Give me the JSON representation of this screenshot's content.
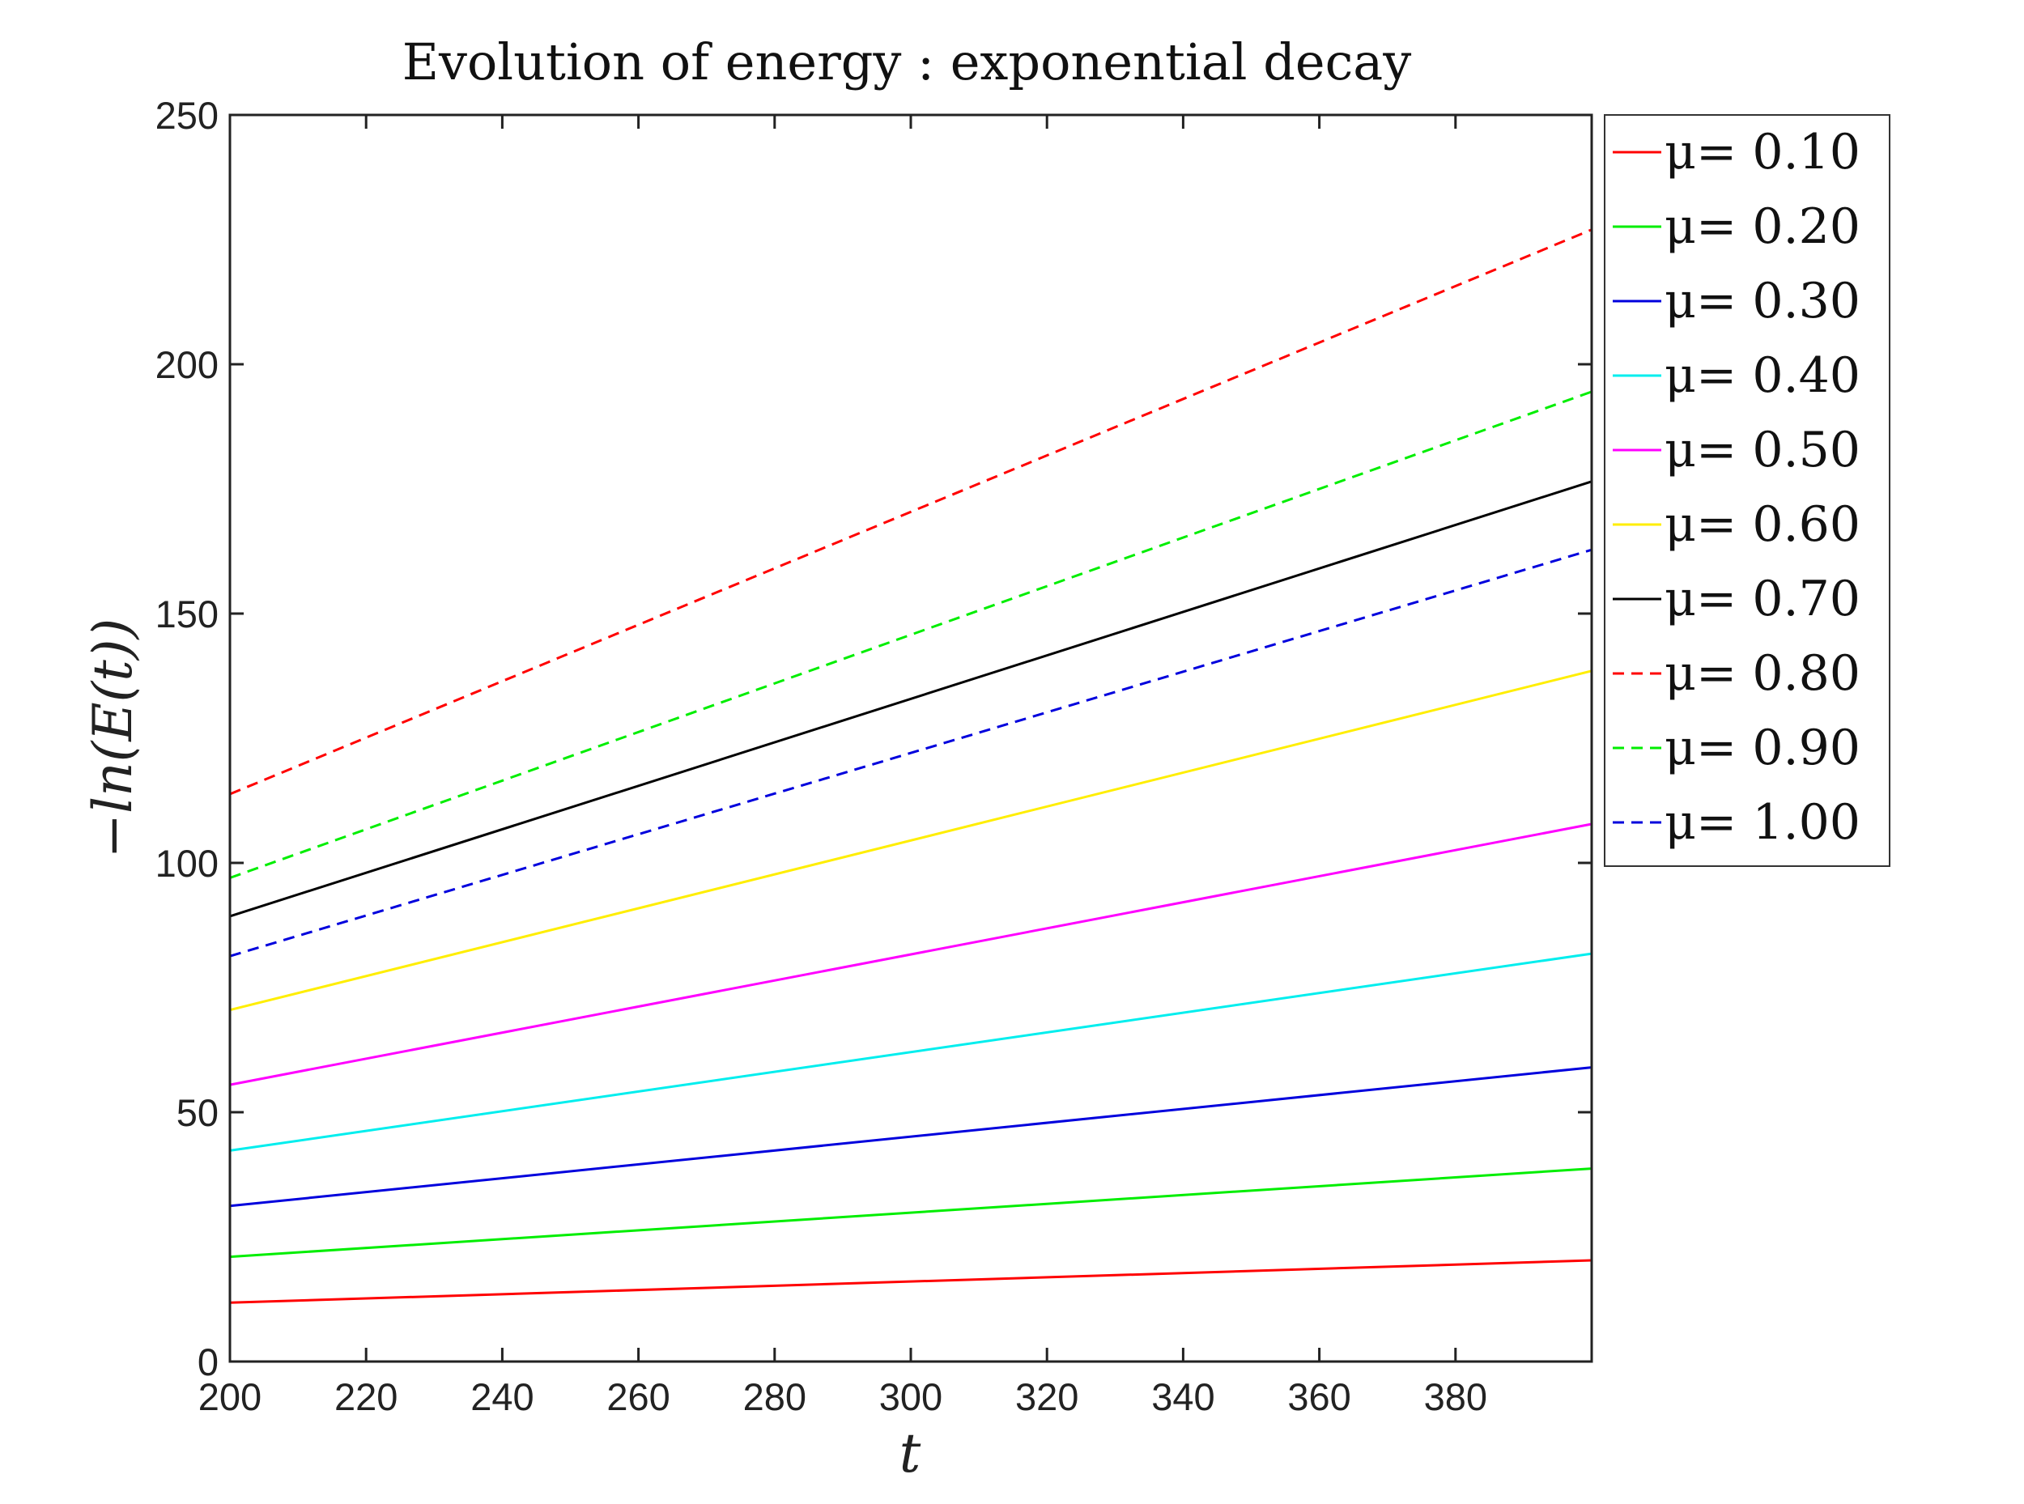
{
  "chart_data": {
    "type": "line",
    "title": "Evolution of energy : exponential decay",
    "xlabel": "t",
    "ylabel": "−ln(E(t))",
    "xlim": [
      200,
      400
    ],
    "ylim": [
      0,
      250
    ],
    "xticks": [
      200,
      220,
      240,
      260,
      280,
      300,
      320,
      340,
      360,
      380
    ],
    "yticks": [
      0,
      50,
      100,
      150,
      200,
      250
    ],
    "grid": false,
    "legend_position": "outside-right",
    "legend_prefix": "μ= ",
    "x": [
      200,
      400
    ],
    "series": [
      {
        "name": "0.10",
        "label": "μ= 0.10",
        "color": "#ff0000",
        "dash": "solid",
        "values": [
          11.8,
          20.3
        ]
      },
      {
        "name": "0.20",
        "label": "μ= 0.20",
        "color": "#00ee00",
        "dash": "solid",
        "values": [
          21.0,
          38.7
        ]
      },
      {
        "name": "0.30",
        "label": "μ= 0.30",
        "color": "#0000dd",
        "dash": "solid",
        "values": [
          31.2,
          59.0
        ]
      },
      {
        "name": "0.40",
        "label": "μ= 0.40",
        "color": "#00eeee",
        "dash": "solid",
        "values": [
          42.3,
          81.8
        ]
      },
      {
        "name": "0.50",
        "label": "μ= 0.50",
        "color": "#ff00ff",
        "dash": "solid",
        "values": [
          55.5,
          107.8
        ]
      },
      {
        "name": "0.60",
        "label": "μ= 0.60",
        "color": "#ffee00",
        "dash": "solid",
        "values": [
          70.5,
          138.5
        ]
      },
      {
        "name": "0.70",
        "label": "μ= 0.70",
        "color": "#000000",
        "dash": "solid",
        "values": [
          89.3,
          176.5
        ]
      },
      {
        "name": "0.80",
        "label": "μ= 0.80",
        "color": "#ff0000",
        "dash": "dashed",
        "values": [
          113.8,
          227.0
        ]
      },
      {
        "name": "0.90",
        "label": "μ= 0.90",
        "color": "#00ee00",
        "dash": "dashed",
        "values": [
          97.0,
          194.5
        ]
      },
      {
        "name": "1.00",
        "label": "μ= 1.00",
        "color": "#0000dd",
        "dash": "dashed",
        "values": [
          81.3,
          162.8
        ]
      }
    ]
  }
}
